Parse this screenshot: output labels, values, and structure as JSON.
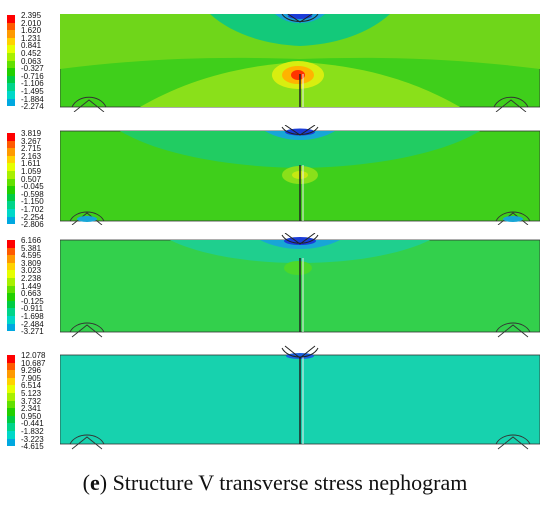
{
  "colors": {
    "scale": [
      "#ff0000",
      "#ff5a00",
      "#ff9a00",
      "#ffd200",
      "#e6ff00",
      "#a8f000",
      "#62e000",
      "#22d000",
      "#00cc44",
      "#00d58a",
      "#00d8c8",
      "#00a8e0",
      "#1060ff",
      "#0000c8"
    ],
    "panel_base": [
      "#3fcf1b",
      "#3fcf1b",
      "#33d04c",
      "#17d2ae"
    ]
  },
  "legends": [
    {
      "values": [
        "2.395",
        "2.010",
        "1.620",
        "1.231",
        "0.841",
        "0.452",
        "0.063",
        "-0.327",
        "-0.716",
        "-1.106",
        "-1.495",
        "-1.884",
        "-2.274"
      ]
    },
    {
      "values": [
        "3.819",
        "3.267",
        "2.715",
        "2.163",
        "1.611",
        "1.059",
        "0.507",
        "-0.045",
        "-0.598",
        "-1.150",
        "-1.702",
        "-2.254",
        "-2.806"
      ]
    },
    {
      "values": [
        "6.166",
        "5.381",
        "4.595",
        "3.809",
        "3.023",
        "2.238",
        "1.449",
        "0.663",
        "-0.125",
        "-0.911",
        "-1.698",
        "-2.484",
        "-3.271"
      ]
    },
    {
      "values": [
        "12.078",
        "10.687",
        "9.296",
        "7.905",
        "6.514",
        "5.123",
        "3.732",
        "2.341",
        "0.950",
        "-0.441",
        "-1.832",
        "-3.223",
        "-4.615"
      ]
    }
  ],
  "caption": {
    "letter": "e",
    "open": "(",
    "close": ")",
    "text": " Structure V transverse stress nephogram"
  }
}
